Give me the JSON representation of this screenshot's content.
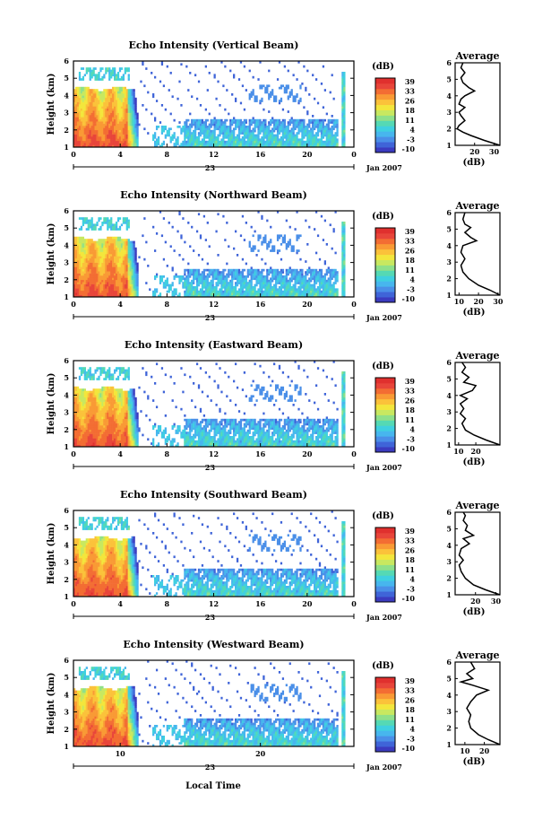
{
  "figure": {
    "xlabel": "Local Time",
    "date_label": "Jan 2007",
    "day_label": "23",
    "avg_title": "Average",
    "colorbar_label": "(dB)",
    "avg_xlabel": "(dB)",
    "ylabel": "Height (km)"
  },
  "colorbar": {
    "ticks": [
      "39",
      "33",
      "26",
      "18",
      "11",
      "4",
      "-3",
      "-10"
    ],
    "colors": [
      "#3b3bbf",
      "#3f64d8",
      "#4a8fe8",
      "#47b6ee",
      "#3fd0e0",
      "#55d9b4",
      "#8ee08a",
      "#c8e860",
      "#f3e63c",
      "#fbc23a",
      "#f99a35",
      "#f36d33",
      "#e8453a",
      "#e0302e"
    ]
  },
  "chart_data": [
    {
      "type": "heatmap",
      "title": "Echo Intensity (Vertical Beam)",
      "xticks": [
        "0",
        "4",
        "8",
        "12",
        "16",
        "20",
        "0"
      ],
      "yticks": [
        "1",
        "2",
        "3",
        "4",
        "5",
        "6"
      ],
      "xlim": [
        0,
        24
      ],
      "ylim": [
        1,
        6
      ],
      "avg": {
        "xticks": [
          "20",
          "30"
        ],
        "xlim": [
          10,
          33
        ],
        "profile": [
          [
            1.0,
            33
          ],
          [
            1.3,
            25
          ],
          [
            1.6,
            18
          ],
          [
            1.8,
            14
          ],
          [
            2.0,
            11
          ],
          [
            2.2,
            12
          ],
          [
            2.5,
            15
          ],
          [
            2.8,
            13
          ],
          [
            3.0,
            12
          ],
          [
            3.3,
            15
          ],
          [
            3.5,
            12
          ],
          [
            3.8,
            13
          ],
          [
            4.0,
            15
          ],
          [
            4.3,
            20
          ],
          [
            4.5,
            17
          ],
          [
            4.8,
            14
          ],
          [
            5.1,
            13
          ],
          [
            5.4,
            15
          ],
          [
            5.7,
            13
          ],
          [
            6.0,
            14
          ]
        ]
      }
    },
    {
      "type": "heatmap",
      "title": "Echo Intensity (Northward Beam)",
      "xticks": [
        "0",
        "4",
        "8",
        "12",
        "16",
        "20",
        "0"
      ],
      "yticks": [
        "1",
        "2",
        "3",
        "4",
        "5",
        "6"
      ],
      "xlim": [
        0,
        24
      ],
      "ylim": [
        1,
        6
      ],
      "avg": {
        "xticks": [
          "10",
          "20",
          "30"
        ],
        "xlim": [
          8,
          31
        ],
        "profile": [
          [
            1.0,
            31
          ],
          [
            1.3,
            26
          ],
          [
            1.6,
            20
          ],
          [
            2.0,
            15
          ],
          [
            2.4,
            12
          ],
          [
            2.8,
            11
          ],
          [
            3.2,
            13
          ],
          [
            3.6,
            11
          ],
          [
            4.0,
            12
          ],
          [
            4.3,
            19
          ],
          [
            4.5,
            16
          ],
          [
            4.8,
            13
          ],
          [
            5.1,
            16
          ],
          [
            5.3,
            13
          ],
          [
            5.6,
            12
          ],
          [
            6.0,
            13
          ]
        ]
      }
    },
    {
      "type": "heatmap",
      "title": "Echo Intensity (Eastward Beam)",
      "xticks": [
        "0",
        "4",
        "8",
        "12",
        "16",
        "20",
        "0"
      ],
      "yticks": [
        "1",
        "2",
        "3",
        "4",
        "5",
        "6"
      ],
      "xlim": [
        0,
        24
      ],
      "ylim": [
        1,
        6
      ],
      "avg": {
        "xticks": [
          "10",
          "20"
        ],
        "xlim": [
          8,
          34
        ],
        "profile": [
          [
            1.0,
            34
          ],
          [
            1.3,
            26
          ],
          [
            1.6,
            19
          ],
          [
            1.9,
            14
          ],
          [
            2.3,
            12
          ],
          [
            2.6,
            14
          ],
          [
            2.9,
            11
          ],
          [
            3.2,
            13
          ],
          [
            3.5,
            11
          ],
          [
            3.8,
            15
          ],
          [
            4.0,
            11
          ],
          [
            4.3,
            18
          ],
          [
            4.6,
            20
          ],
          [
            4.8,
            13
          ],
          [
            5.1,
            16
          ],
          [
            5.4,
            12
          ],
          [
            5.7,
            14
          ],
          [
            6.0,
            12
          ]
        ]
      }
    },
    {
      "type": "heatmap",
      "title": "Echo Intensity (Southward Beam)",
      "xticks": [
        "0",
        "4",
        "8",
        "12",
        "16",
        "20",
        "0"
      ],
      "yticks": [
        "1",
        "2",
        "3",
        "4",
        "5",
        "6"
      ],
      "xlim": [
        0,
        24
      ],
      "ylim": [
        1,
        6
      ],
      "avg": {
        "xticks": [
          "20",
          "30"
        ],
        "xlim": [
          10,
          32
        ],
        "profile": [
          [
            1.0,
            32
          ],
          [
            1.3,
            25
          ],
          [
            1.6,
            19
          ],
          [
            2.0,
            15
          ],
          [
            2.4,
            13
          ],
          [
            2.8,
            12
          ],
          [
            3.1,
            14
          ],
          [
            3.4,
            12
          ],
          [
            3.8,
            13
          ],
          [
            4.1,
            17
          ],
          [
            4.4,
            14
          ],
          [
            4.6,
            19
          ],
          [
            4.9,
            15
          ],
          [
            5.2,
            16
          ],
          [
            5.5,
            14
          ],
          [
            5.8,
            15
          ],
          [
            6.0,
            14
          ]
        ]
      }
    },
    {
      "type": "heatmap",
      "title": "Echo Intensity (Westward Beam)",
      "xticks": [
        "10",
        "20"
      ],
      "yticks": [
        "1",
        "2",
        "3",
        "4",
        "5",
        "6"
      ],
      "xlim": [
        0,
        24
      ],
      "ylim": [
        1,
        6
      ],
      "avg": {
        "xticks": [
          "10",
          "20"
        ],
        "xlim": [
          5,
          28
        ],
        "profile": [
          [
            1.0,
            28
          ],
          [
            1.3,
            22
          ],
          [
            1.6,
            17
          ],
          [
            2.0,
            13
          ],
          [
            2.4,
            12
          ],
          [
            2.8,
            13
          ],
          [
            3.2,
            11
          ],
          [
            3.6,
            13
          ],
          [
            4.0,
            16
          ],
          [
            4.3,
            22
          ],
          [
            4.6,
            14
          ],
          [
            4.8,
            8
          ],
          [
            5.0,
            14
          ],
          [
            5.3,
            11
          ],
          [
            5.6,
            15
          ],
          [
            6.0,
            13
          ]
        ]
      }
    }
  ]
}
